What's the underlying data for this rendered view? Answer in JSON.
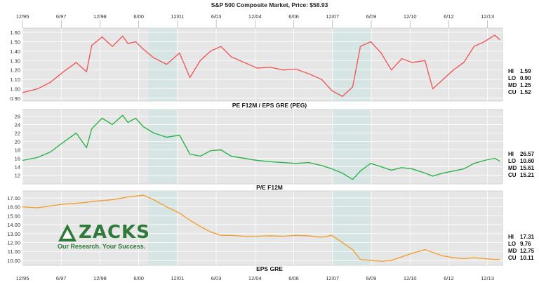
{
  "header": {
    "title": "S&P 500 Composite Market,  Price:  $58.93"
  },
  "x_ticks": [
    "12/95",
    "6/97",
    "12/98",
    "6/00",
    "12/01",
    "6/03",
    "12/04",
    "6/06",
    "12/07",
    "6/09",
    "12/10",
    "6/12",
    "12/13"
  ],
  "logo": {
    "word": "ZACKS",
    "tagline": "Our Research. Your Success."
  },
  "colors": {
    "peg": "#f05a5a",
    "pe": "#2db34a",
    "eps": "#f0a030",
    "panel": "#e6e6e6",
    "shade": "#d3e3e3"
  },
  "chart_data": [
    {
      "type": "line",
      "title": "PE F12M / EPS GRE (PEG)",
      "ylim": [
        0.9,
        1.6
      ],
      "yticks": [
        "1.60",
        "1.50",
        "1.40",
        "1.30",
        "1.20",
        "1.10",
        "1.00",
        "0.90"
      ],
      "stats": [
        {
          "label": "HI",
          "value": "1.59"
        },
        {
          "label": "LO",
          "value": "0.90"
        },
        {
          "label": "MD",
          "value": "1.25"
        },
        {
          "label": "CU",
          "value": "1.52"
        }
      ],
      "x": [
        1995.92,
        1996.5,
        1997.0,
        1997.5,
        1998.0,
        1998.4,
        1998.6,
        1999.0,
        1999.4,
        1999.8,
        2000.0,
        2000.3,
        2000.6,
        2001.0,
        2001.5,
        2002.0,
        2002.4,
        2002.8,
        2003.2,
        2003.6,
        2004.0,
        2004.5,
        2005.0,
        2005.5,
        2006.0,
        2006.5,
        2007.0,
        2007.5,
        2007.9,
        2008.3,
        2008.7,
        2009.0,
        2009.4,
        2009.8,
        2010.2,
        2010.6,
        2011.0,
        2011.5,
        2011.8,
        2012.2,
        2012.6,
        2013.0,
        2013.4,
        2013.8,
        2014.2,
        2014.4
      ],
      "series": [
        {
          "values": [
            0.96,
            1.0,
            1.07,
            1.18,
            1.28,
            1.18,
            1.46,
            1.55,
            1.45,
            1.56,
            1.48,
            1.5,
            1.42,
            1.33,
            1.26,
            1.38,
            1.12,
            1.3,
            1.4,
            1.45,
            1.34,
            1.28,
            1.22,
            1.23,
            1.2,
            1.21,
            1.16,
            1.1,
            0.98,
            0.92,
            1.02,
            1.45,
            1.5,
            1.38,
            1.2,
            1.32,
            1.28,
            1.3,
            1.0,
            1.1,
            1.2,
            1.28,
            1.45,
            1.5,
            1.57,
            1.52
          ]
        }
      ]
    },
    {
      "type": "line",
      "title": "P/E F12M",
      "ylim": [
        10.6,
        26.57
      ],
      "yticks": [
        "26",
        "24",
        "22",
        "20",
        "18",
        "16",
        "14",
        "12"
      ],
      "stats": [
        {
          "label": "HI",
          "value": "26.57"
        },
        {
          "label": "LO",
          "value": "10.60"
        },
        {
          "label": "MD",
          "value": "15.61"
        },
        {
          "label": "CU",
          "value": "15.21"
        }
      ],
      "x": [
        1995.92,
        1996.5,
        1997.0,
        1997.5,
        1998.0,
        1998.4,
        1998.6,
        1999.0,
        1999.4,
        1999.8,
        2000.0,
        2000.3,
        2000.6,
        2001.0,
        2001.5,
        2002.0,
        2002.4,
        2002.8,
        2003.2,
        2003.6,
        2004.0,
        2004.5,
        2005.0,
        2005.5,
        2006.0,
        2006.5,
        2007.0,
        2007.5,
        2007.9,
        2008.3,
        2008.7,
        2009.0,
        2009.4,
        2009.8,
        2010.2,
        2010.6,
        2011.0,
        2011.5,
        2011.8,
        2012.2,
        2012.6,
        2013.0,
        2013.4,
        2013.8,
        2014.2,
        2014.4
      ],
      "series": [
        {
          "values": [
            15.5,
            16.2,
            17.5,
            19.8,
            22.0,
            18.5,
            23.0,
            25.5,
            24.0,
            26.2,
            24.5,
            25.5,
            23.5,
            22.0,
            21.0,
            21.5,
            17.0,
            16.5,
            17.8,
            18.0,
            16.5,
            16.0,
            15.5,
            15.2,
            15.0,
            14.8,
            15.0,
            14.3,
            13.5,
            12.5,
            11.0,
            13.0,
            14.8,
            14.0,
            13.2,
            13.8,
            13.5,
            12.5,
            11.8,
            12.5,
            13.0,
            13.5,
            14.8,
            15.5,
            16.0,
            15.3
          ]
        }
      ]
    },
    {
      "type": "line",
      "title": "EPS GRE",
      "ylim": [
        9.76,
        17.31
      ],
      "yticks": [
        "17.00",
        "16.00",
        "15.00",
        "14.00",
        "13.00",
        "12.00",
        "11.00",
        "10.00"
      ],
      "stats": [
        {
          "label": "HI",
          "value": "17.31"
        },
        {
          "label": "LO",
          "value": "9.76"
        },
        {
          "label": "MD",
          "value": "12.75"
        },
        {
          "label": "CU",
          "value": "10.11"
        }
      ],
      "x": [
        1995.92,
        1996.5,
        1997.0,
        1997.5,
        1998.0,
        1998.4,
        1998.6,
        1999.0,
        1999.4,
        1999.8,
        2000.0,
        2000.3,
        2000.6,
        2001.0,
        2001.5,
        2002.0,
        2002.4,
        2002.8,
        2003.2,
        2003.6,
        2004.0,
        2004.5,
        2005.0,
        2005.5,
        2006.0,
        2006.5,
        2007.0,
        2007.5,
        2007.9,
        2008.3,
        2008.7,
        2009.0,
        2009.4,
        2009.8,
        2010.2,
        2010.6,
        2011.0,
        2011.5,
        2011.8,
        2012.2,
        2012.6,
        2013.0,
        2013.4,
        2013.8,
        2014.2,
        2014.4
      ],
      "series": [
        {
          "values": [
            16.0,
            15.9,
            16.1,
            16.3,
            16.4,
            16.5,
            16.6,
            16.7,
            16.8,
            17.0,
            17.1,
            17.2,
            17.3,
            16.8,
            16.0,
            15.3,
            14.5,
            13.8,
            13.2,
            12.8,
            12.8,
            12.7,
            12.7,
            12.75,
            12.7,
            12.8,
            12.75,
            12.6,
            12.8,
            12.0,
            11.2,
            10.1,
            10.0,
            9.9,
            10.0,
            10.4,
            10.8,
            11.2,
            10.9,
            10.5,
            10.3,
            10.2,
            10.3,
            10.2,
            10.1,
            10.11
          ]
        }
      ]
    }
  ]
}
